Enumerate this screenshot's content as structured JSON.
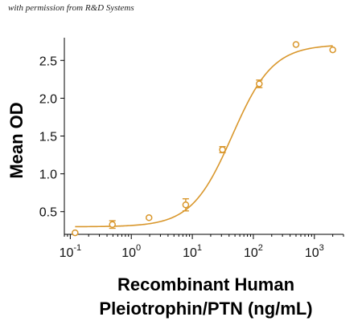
{
  "watermark": "with permission from R&D Systems",
  "chart_data": {
    "type": "scatter",
    "title": "",
    "xlabel_line1": "Recombinant Human",
    "xlabel_line2": "Pleiotrophin/PTN (ng/mL)",
    "ylabel": "Mean OD",
    "x_scale": "log",
    "xlim": [
      0.08,
      3000
    ],
    "ylim": [
      0.2,
      2.8
    ],
    "x_ticks": [
      0.1,
      1,
      10,
      100,
      1000
    ],
    "x_tick_labels": [
      {
        "base": "10",
        "exp": "-1"
      },
      {
        "base": "10",
        "exp": "0"
      },
      {
        "base": "10",
        "exp": "1"
      },
      {
        "base": "10",
        "exp": "2"
      },
      {
        "base": "10",
        "exp": "3"
      }
    ],
    "y_ticks": [
      0.5,
      1.0,
      1.5,
      2.0,
      2.5
    ],
    "y_tick_labels": [
      "0.5",
      "1.0",
      "1.5",
      "2.0",
      "2.5"
    ],
    "color": "#d9972c",
    "grid": false,
    "series": [
      {
        "name": "",
        "points": [
          {
            "x": 0.12,
            "y": 0.22,
            "err": 0.0
          },
          {
            "x": 0.49,
            "y": 0.33,
            "err": 0.05
          },
          {
            "x": 1.95,
            "y": 0.42,
            "err": 0.0
          },
          {
            "x": 7.8,
            "y": 0.59,
            "err": 0.08
          },
          {
            "x": 31.2,
            "y": 1.32,
            "err": 0.04
          },
          {
            "x": 125,
            "y": 2.19,
            "err": 0.05
          },
          {
            "x": 500,
            "y": 2.71,
            "err": 0.0
          },
          {
            "x": 2000,
            "y": 2.64,
            "err": 0.0
          }
        ]
      }
    ],
    "fit": {
      "model": "4PL",
      "bottom": 0.3,
      "top": 2.71,
      "ec50": 45,
      "hill": 1.3
    }
  }
}
